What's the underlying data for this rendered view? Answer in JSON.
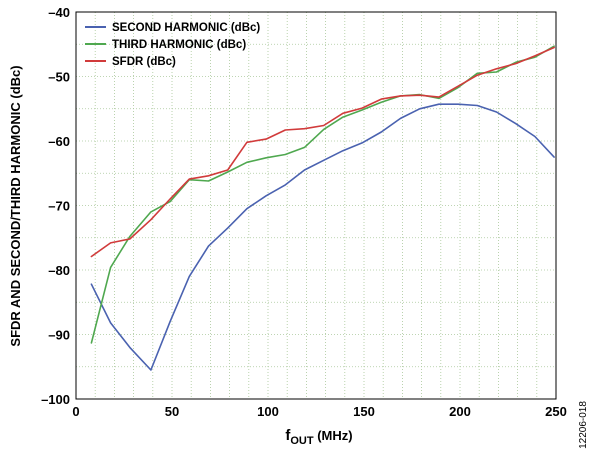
{
  "chart_data": {
    "type": "line",
    "xlabel": "f",
    "xlabel_sub": "OUT",
    "xlabel_unit": " (MHz)",
    "ylabel": "SFDR AND SECOND/THIRD HARMONIC (dBc)",
    "xlim": [
      0,
      250
    ],
    "ylim": [
      -100,
      -40
    ],
    "x_ticks": [
      0,
      50,
      100,
      150,
      200,
      250
    ],
    "x_tick_labels": [
      "0",
      "50",
      "100",
      "150",
      "200",
      "250"
    ],
    "y_ticks": [
      -100,
      -90,
      -80,
      -70,
      -60,
      -50,
      -40
    ],
    "y_tick_labels": [
      "–100",
      "–90",
      "–80",
      "–70",
      "–60",
      "–50",
      "–40"
    ],
    "grid": true,
    "legend_position": "top-left",
    "figure_id": "12206-018",
    "series": [
      {
        "name": "SECOND HARMONIC (dBc)",
        "color": "#4a62b0",
        "x": [
          8,
          18,
          28,
          39,
          49,
          59,
          69,
          79,
          89,
          99,
          109,
          119,
          129,
          139,
          149,
          159,
          169,
          179,
          189,
          199,
          209,
          219,
          229,
          239,
          249
        ],
        "y": [
          -82.2,
          -88.2,
          -92.0,
          -95.5,
          -88.0,
          -81.0,
          -76.3,
          -73.5,
          -70.5,
          -68.5,
          -66.8,
          -64.5,
          -63.0,
          -61.5,
          -60.3,
          -58.6,
          -56.5,
          -55.0,
          -54.3,
          -54.3,
          -54.5,
          -55.5,
          -57.3,
          -59.3,
          -62.5
        ]
      },
      {
        "name": "THIRD HARMONIC (dBc)",
        "color": "#4fa84f",
        "x": [
          8,
          18,
          28,
          39,
          49,
          59,
          69,
          79,
          89,
          99,
          109,
          119,
          129,
          139,
          149,
          159,
          169,
          179,
          189,
          199,
          209,
          219,
          229,
          239,
          249
        ],
        "y": [
          -91.3,
          -79.6,
          -74.8,
          -71.0,
          -69.4,
          -66.0,
          -66.2,
          -64.8,
          -63.3,
          -62.6,
          -62.1,
          -61.0,
          -58.2,
          -56.3,
          -55.2,
          -54.0,
          -53.0,
          -52.8,
          -53.4,
          -51.7,
          -49.5,
          -49.3,
          -47.8,
          -47.0,
          -45.3
        ]
      },
      {
        "name": "SFDR (dBc)",
        "color": "#d13b3b",
        "x": [
          8,
          18,
          28,
          39,
          49,
          59,
          69,
          79,
          89,
          99,
          109,
          119,
          129,
          139,
          149,
          159,
          169,
          179,
          189,
          199,
          209,
          219,
          229,
          239,
          249
        ],
        "y": [
          -77.9,
          -75.8,
          -75.2,
          -72.2,
          -69.0,
          -65.9,
          -65.4,
          -64.5,
          -60.2,
          -59.7,
          -58.3,
          -58.1,
          -57.6,
          -55.7,
          -54.9,
          -53.5,
          -53.0,
          -52.9,
          -53.2,
          -51.5,
          -49.8,
          -48.8,
          -48.0,
          -46.8,
          -45.5
        ]
      }
    ]
  }
}
